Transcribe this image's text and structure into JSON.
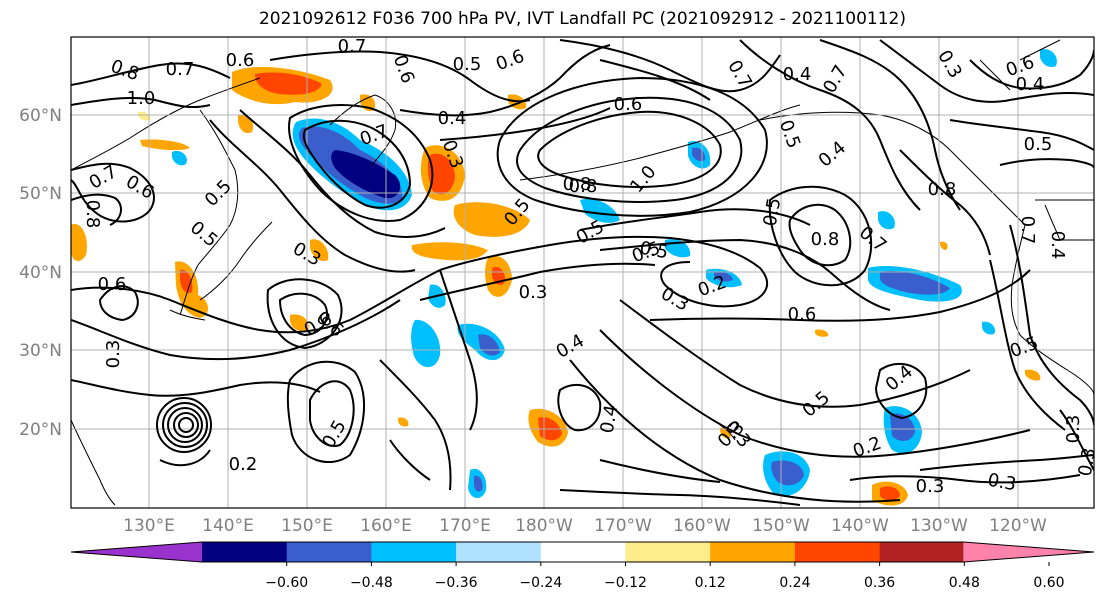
{
  "title": "2021092612 F036 700 hPa PV, IVT Landfall PC (2021092912 - 2021100112)",
  "lat_labels": [
    "60°N",
    "50°N",
    "40°N",
    "30°N",
    "20°N"
  ],
  "lon_labels": [
    "130°E",
    "140°E",
    "150°E",
    "160°E",
    "170°E",
    "180°W",
    "170°W",
    "160°W",
    "150°W",
    "140°W",
    "130°W",
    "120°W"
  ],
  "colorbar": {
    "colors": [
      "#9a32cd",
      "#000080",
      "#3a5fcd",
      "#00bfff",
      "#b0e2ff",
      "#ffffff",
      "#ffec8b",
      "#ffa500",
      "#ff4500",
      "#b22222",
      "#ff82ab"
    ],
    "tick_labels": [
      "−0.60",
      "−0.48",
      "−0.36",
      "−0.24",
      "−0.12",
      "0.12",
      "0.24",
      "0.36",
      "0.48",
      "0.60"
    ]
  },
  "contour_labels": [
    "0.7",
    "0.8",
    "0.7",
    "1.0",
    "0.6",
    "0.5",
    "0.6",
    "0.7",
    "0.4",
    "0.7",
    "0.6",
    "0.5",
    "0.8",
    "0.5",
    "0.6",
    "0.7",
    "0.7",
    "0.6",
    "0.4",
    "0.3",
    "0.6",
    "0.4",
    "0.5",
    "0.3",
    "0.8",
    "1.0",
    "0.8",
    "0.5",
    "0.5",
    "0.4",
    "0.8",
    "0.7",
    "0.8",
    "0.5",
    "0.3",
    "0.3",
    "0.6",
    "0.6",
    "0.3",
    "0.2",
    "0.6",
    "0.4",
    "0.5",
    "0.5",
    "0.4",
    "0.3",
    "0.2",
    "0.3",
    "0.3",
    "0.4",
    "0.5",
    "0.3",
    "0.2",
    "0.3",
    "0.3",
    "0.7",
    "0.4",
    "0.5",
    "0.3",
    "0.5",
    "0.5",
    "0.6"
  ],
  "legend": {
    "pv_units_hint": ""
  }
}
